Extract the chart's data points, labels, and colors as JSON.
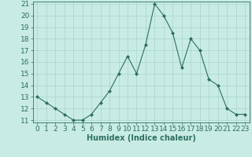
{
  "x": [
    0,
    1,
    2,
    3,
    4,
    5,
    6,
    7,
    8,
    9,
    10,
    11,
    12,
    13,
    14,
    15,
    16,
    17,
    18,
    19,
    20,
    21,
    22,
    23
  ],
  "y": [
    13,
    12.5,
    12,
    11.5,
    11,
    11,
    11.5,
    12.5,
    13.5,
    15,
    16.5,
    15,
    17.5,
    21,
    20,
    18.5,
    15.5,
    18,
    17,
    14.5,
    14,
    12,
    11.5,
    11.5
  ],
  "line_color": "#2e6e62",
  "marker": "D",
  "marker_size": 2.0,
  "bg_color": "#c8ece4",
  "grid_color": "#a8d4cc",
  "xlabel": "Humidex (Indice chaleur)",
  "ylim": [
    11,
    21
  ],
  "xlim": [
    -0.5,
    23.5
  ],
  "yticks": [
    11,
    12,
    13,
    14,
    15,
    16,
    17,
    18,
    19,
    20,
    21
  ],
  "xticks": [
    0,
    1,
    2,
    3,
    4,
    5,
    6,
    7,
    8,
    9,
    10,
    11,
    12,
    13,
    14,
    15,
    16,
    17,
    18,
    19,
    20,
    21,
    22,
    23
  ],
  "tick_color": "#2e6e62",
  "label_color": "#2e6e62",
  "axis_color": "#2e6e62",
  "font_size": 6.5,
  "xlabel_fontsize": 7.0
}
